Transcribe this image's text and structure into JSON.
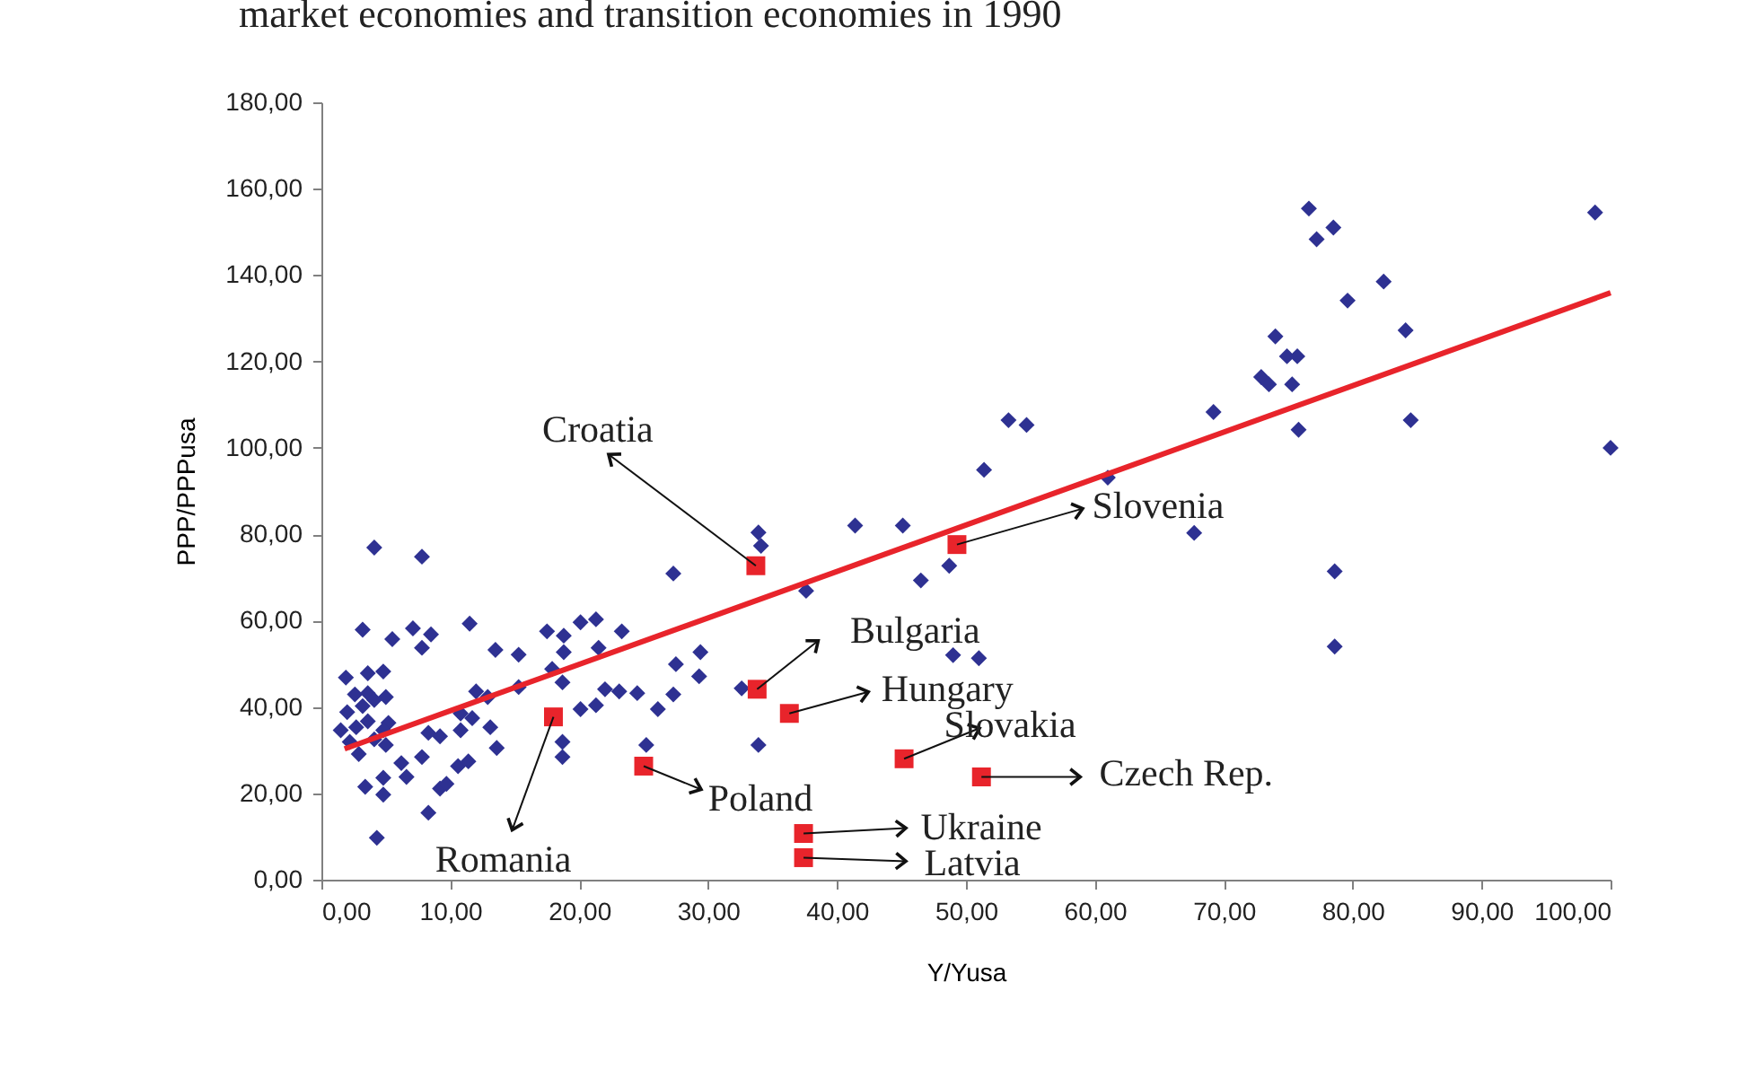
{
  "chart_data": {
    "type": "scatter",
    "title": "market economies and transition economies in 1990",
    "xlabel": "Y/Yusa",
    "ylabel": "PPP/PPPusa",
    "xlim": [
      0,
      100
    ],
    "ylim": [
      0,
      180
    ],
    "xticks": [
      {
        "value": 0,
        "label": "0,00"
      },
      {
        "value": 10,
        "label": "10,00"
      },
      {
        "value": 20,
        "label": "20,00"
      },
      {
        "value": 30,
        "label": "30,00"
      },
      {
        "value": 40,
        "label": "40,00"
      },
      {
        "value": 50,
        "label": "50,00"
      },
      {
        "value": 60,
        "label": "60,00"
      },
      {
        "value": 70,
        "label": "70,00"
      },
      {
        "value": 80,
        "label": "80,00"
      },
      {
        "value": 90,
        "label": "90,00"
      },
      {
        "value": 100,
        "label": "100,00"
      }
    ],
    "yticks": [
      {
        "value": 0,
        "label": "0,00"
      },
      {
        "value": 20,
        "label": "20,00"
      },
      {
        "value": 40,
        "label": "40,00"
      },
      {
        "value": 60,
        "label": "60,00"
      },
      {
        "value": 80,
        "label": "80,00"
      },
      {
        "value": 100,
        "label": "100,00"
      },
      {
        "value": 120,
        "label": "120,00"
      },
      {
        "value": 140,
        "label": "140,00"
      },
      {
        "value": 160,
        "label": "160,00"
      },
      {
        "value": 180,
        "label": "180,00"
      }
    ],
    "grid": false,
    "series": [
      {
        "color": "#2e3192",
        "marker": "diamond",
        "x": [
          4.1,
          7.8,
          3.2,
          5.5,
          7.1,
          8.5,
          7.8,
          11.5,
          13.5,
          15.3,
          1.9,
          3.6,
          4.8,
          2.6,
          3.6,
          5.0,
          2.0,
          3.2,
          4.1,
          1.5,
          2.7,
          3.6,
          5.2,
          2.2,
          2.9,
          4.1,
          5.0,
          4.8,
          12.0,
          12.9,
          10.8,
          11.7,
          13.1,
          10.8,
          15.3,
          17.5,
          18.8,
          18.8,
          17.9,
          18.7,
          20.1,
          21.3,
          20.1,
          21.3,
          8.3,
          9.2,
          7.8,
          6.2,
          6.6,
          10.6,
          11.4,
          13.6,
          18.7,
          18.7,
          3.4,
          4.8,
          4.8,
          9.2,
          9.7,
          8.3,
          4.3,
          53.3,
          54.7,
          51.4,
          41.4,
          45.1,
          33.9,
          34.1,
          27.3,
          37.6,
          46.5,
          48.7,
          49.0,
          51.0,
          29.4,
          27.5,
          29.3,
          23.3,
          21.5,
          27.3,
          26.1,
          24.5,
          23.1,
          22.0,
          32.6,
          25.2,
          33.9,
          76.6,
          78.5,
          77.2,
          98.8,
          82.4,
          79.6,
          74.0,
          84.1,
          74.9,
          75.7,
          72.9,
          73.5,
          75.3,
          69.2,
          75.8,
          84.5,
          100,
          61.0,
          67.7,
          78.6,
          78.6
        ],
        "values": [
          76.9,
          74.8,
          57.9,
          55.7,
          58.2,
          56.8,
          53.7,
          59.3,
          53.2,
          52.1,
          46.8,
          47.8,
          48.2,
          42.9,
          43.2,
          42.3,
          38.8,
          40.2,
          41.6,
          34.6,
          35.3,
          36.7,
          36.3,
          31.9,
          29.1,
          32.5,
          31.2,
          34.6,
          43.6,
          42.3,
          38.5,
          37.4,
          35.3,
          34.6,
          44.6,
          57.5,
          56.5,
          52.7,
          48.8,
          45.7,
          59.6,
          60.3,
          39.5,
          40.4,
          34.0,
          33.2,
          28.4,
          27.0,
          23.8,
          26.3,
          27.4,
          30.5,
          31.9,
          28.4,
          21.5,
          19.7,
          23.6,
          21.1,
          22.2,
          15.5,
          9.7,
          106.4,
          105.3,
          94.9,
          82.0,
          82.0,
          80.4,
          77.3,
          70.9,
          66.9,
          69.3,
          72.7,
          52.0,
          51.3,
          52.7,
          49.9,
          47.1,
          57.5,
          53.7,
          42.9,
          39.5,
          43.2,
          43.6,
          44.1,
          44.3,
          31.2,
          31.2,
          155.4,
          151.0,
          148.3,
          154.5,
          138.5,
          134.1,
          125.8,
          127.2,
          121.2,
          121.2,
          116.4,
          114.7,
          114.7,
          108.3,
          104.2,
          106.4,
          100.0,
          93.1,
          80.3,
          71.4,
          54.0
        ]
      },
      {
        "type": "line",
        "color": "#e8242b",
        "line_style": "solid",
        "x": [
          1.8,
          100
        ],
        "values": [
          30.3,
          135.9
        ]
      },
      {
        "color": "#e8242b",
        "marker": "square",
        "x": [
          33.7,
          49.3,
          33.8,
          36.3,
          18.0,
          25.0,
          45.2,
          51.2,
          37.4,
          37.4
        ],
        "values": [
          72.7,
          77.6,
          44.1,
          38.5,
          37.7,
          26.3,
          28.0,
          23.8,
          10.7,
          5.1
        ]
      }
    ],
    "annotations": [
      {
        "text": "Croatia",
        "x": 33.7,
        "y": 72.7
      },
      {
        "text": "Slovenia",
        "x": 49.3,
        "y": 77.6
      },
      {
        "text": "Bulgaria",
        "x": 33.8,
        "y": 44.1
      },
      {
        "text": "Hungary",
        "x": 36.3,
        "y": 38.5
      },
      {
        "text": "Romania",
        "x": 18.0,
        "y": 37.7
      },
      {
        "text": "Poland",
        "x": 25.0,
        "y": 26.3
      },
      {
        "text": "Slovakia",
        "x": 45.2,
        "y": 28.0
      },
      {
        "text": "Czech Rep.",
        "x": 51.2,
        "y": 23.8
      },
      {
        "text": "Ukraine",
        "x": 37.4,
        "y": 10.7
      },
      {
        "text": "Latvia",
        "x": 37.4,
        "y": 5.1
      }
    ]
  }
}
